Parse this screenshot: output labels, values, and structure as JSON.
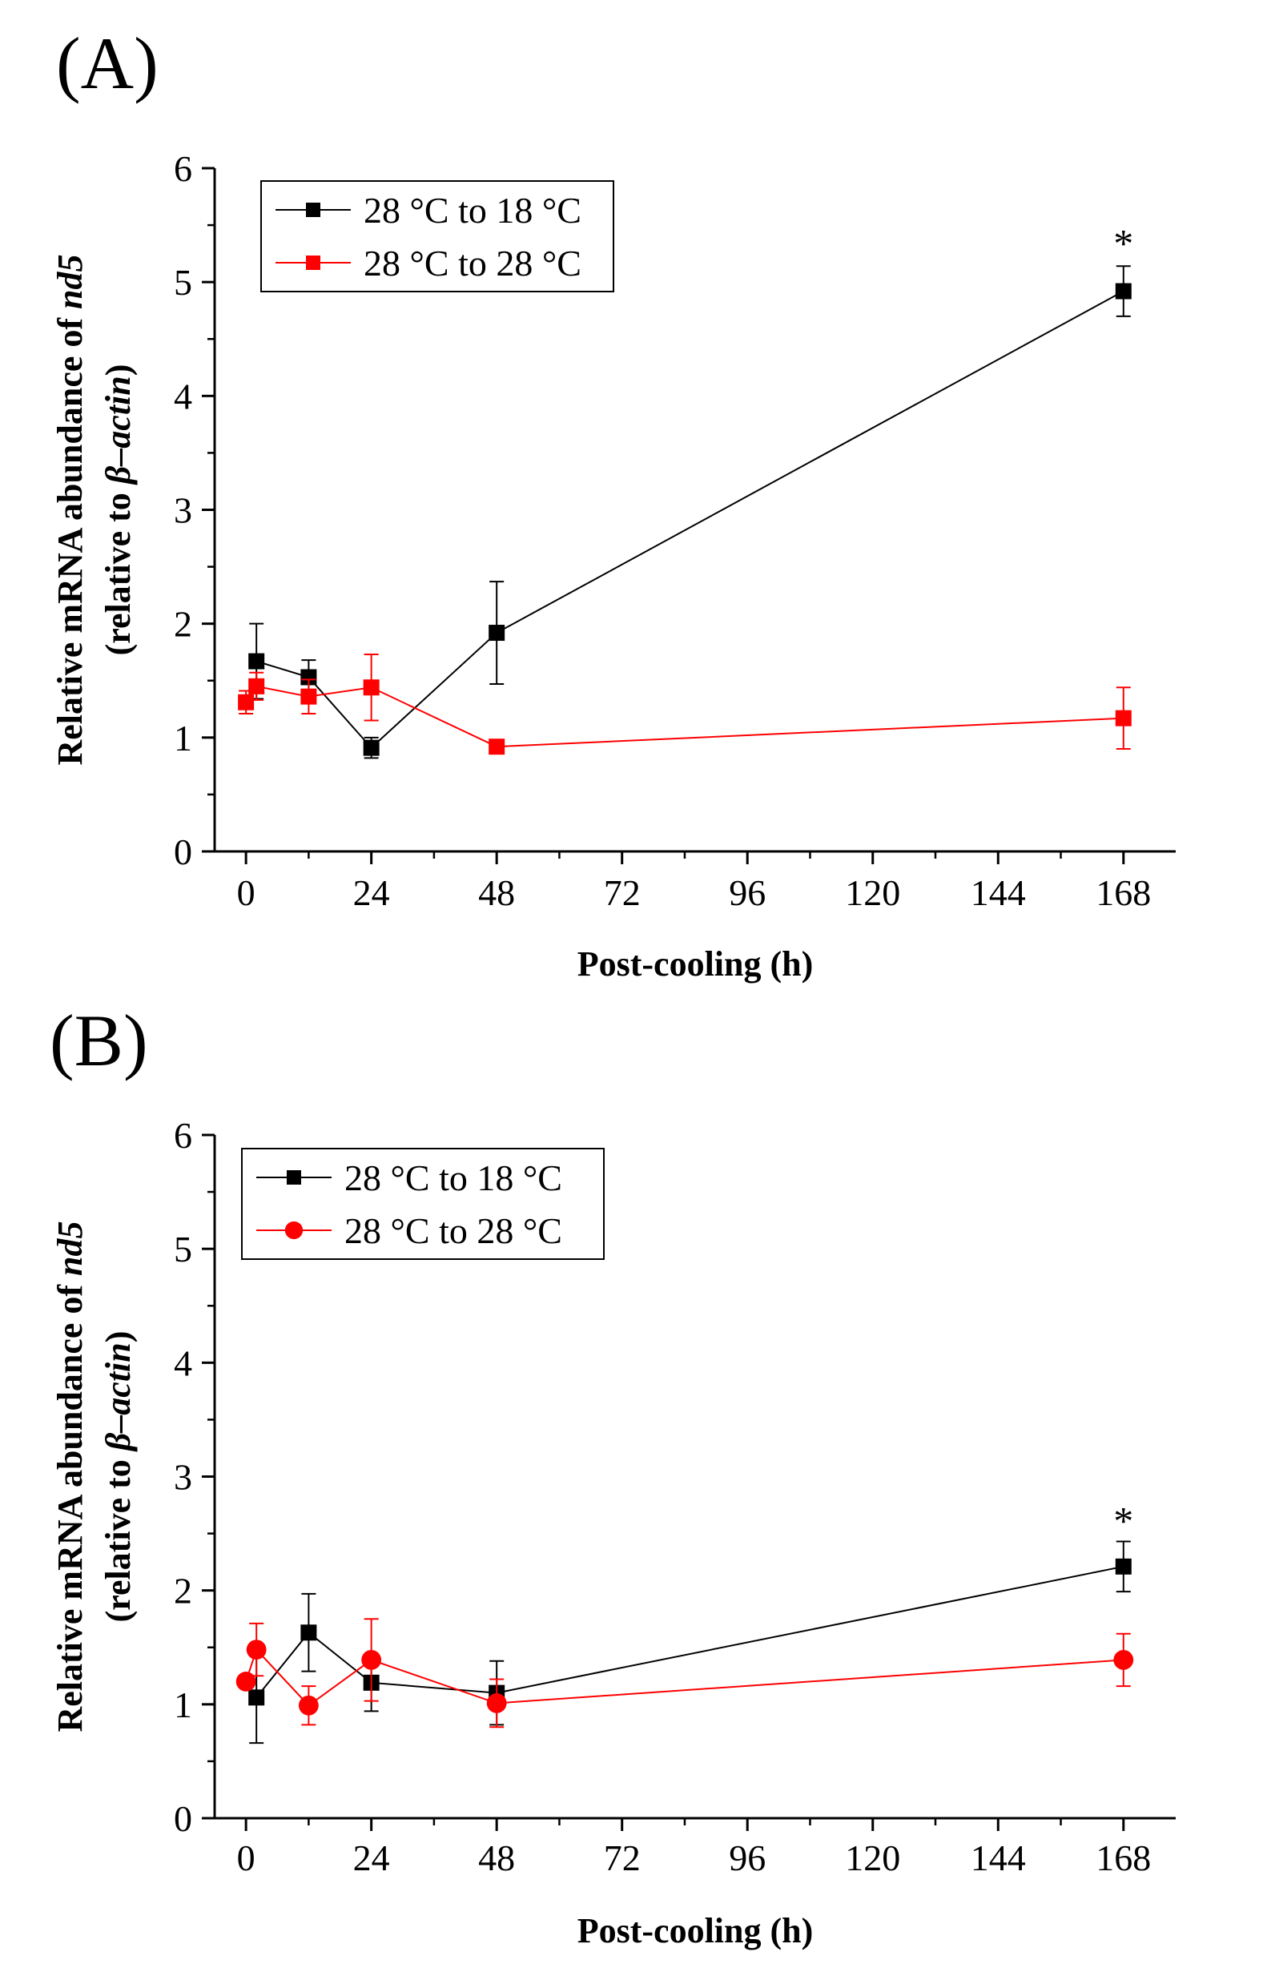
{
  "chart_data": [
    {
      "panel": "(A)",
      "type": "line",
      "xlabel": "Post-cooling (h)",
      "ylabel_line1_parts": [
        "Relative mRNA abundance of ",
        "nd5"
      ],
      "ylabel_line2_parts": [
        "(relative to ",
        "β–actin",
        ")"
      ],
      "xlim": [
        -6,
        178
      ],
      "ylim": [
        0,
        6
      ],
      "xticks": [
        0,
        24,
        48,
        72,
        96,
        120,
        144,
        168
      ],
      "yticks": [
        0,
        1,
        2,
        3,
        4,
        5,
        6
      ],
      "legend_position": "top-left",
      "series": [
        {
          "name": "28 °C to 18 °C",
          "color": "#000000",
          "marker": "square",
          "x": [
            2,
            12,
            24,
            48,
            168
          ],
          "values": [
            1.67,
            1.53,
            0.91,
            1.92,
            4.92
          ],
          "errors": [
            0.33,
            0.15,
            0.09,
            0.45,
            0.22
          ]
        },
        {
          "name": "28 °C to 28 °C",
          "color": "#ff0000",
          "marker": "square",
          "x": [
            0,
            2,
            12,
            24,
            48,
            168
          ],
          "values": [
            1.31,
            1.45,
            1.36,
            1.44,
            0.92,
            1.17
          ],
          "errors": [
            0.1,
            0.12,
            0.15,
            0.29,
            0.03,
            0.27
          ]
        }
      ],
      "annotations": [
        {
          "text": "*",
          "x": 168,
          "y": 5.35
        }
      ]
    },
    {
      "panel": "(B)",
      "type": "line",
      "xlabel": "Post-cooling (h)",
      "ylabel_line1_parts": [
        "Relative mRNA abundance of ",
        "nd5"
      ],
      "ylabel_line2_parts": [
        "(relative to ",
        "β–actin",
        ")"
      ],
      "xlim": [
        -6,
        178
      ],
      "ylim": [
        0,
        6
      ],
      "xticks": [
        0,
        24,
        48,
        72,
        96,
        120,
        144,
        168
      ],
      "yticks": [
        0,
        1,
        2,
        3,
        4,
        5,
        6
      ],
      "legend_position": "top-left",
      "series": [
        {
          "name": "28 °C to 18 °C",
          "color": "#000000",
          "marker": "square",
          "x": [
            2,
            12,
            24,
            48,
            168
          ],
          "values": [
            1.06,
            1.63,
            1.19,
            1.1,
            2.21
          ],
          "errors": [
            0.4,
            0.34,
            0.25,
            0.28,
            0.22
          ]
        },
        {
          "name": "28 °C to 28 °C",
          "color": "#ff0000",
          "marker": "circle",
          "x": [
            0,
            2,
            12,
            24,
            48,
            168
          ],
          "values": [
            1.2,
            1.48,
            0.99,
            1.39,
            1.01,
            1.39
          ],
          "errors": [
            0.03,
            0.23,
            0.17,
            0.36,
            0.21,
            0.23
          ]
        }
      ],
      "annotations": [
        {
          "text": "*",
          "x": 168,
          "y": 2.62
        }
      ]
    }
  ]
}
